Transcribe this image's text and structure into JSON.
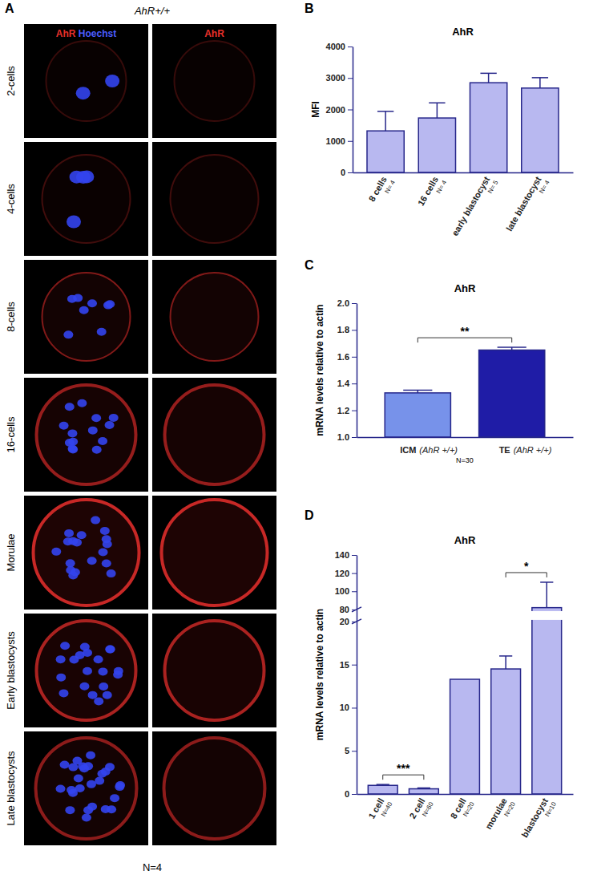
{
  "image_panel": {
    "label": "A",
    "header": "AhR+/+",
    "columns": [
      [
        "AhR",
        "Hoechst"
      ],
      [
        "AhR"
      ]
    ],
    "rows": [
      "2-cells",
      "4-cells",
      "8-cells",
      "16-cells",
      "Morulae",
      "Early blastocysts",
      "Late blastocysts"
    ],
    "footer": "N=4"
  },
  "chart_data": [
    {
      "type": "bar",
      "panel": "B",
      "title": "AhR",
      "ylabel": "MFI",
      "categories": [
        "8 cells",
        "16 cells",
        "early blastocyst",
        "late blastocyst"
      ],
      "category_notes": [
        "N= 4",
        "N= 4",
        "N= 5",
        "N= 4"
      ],
      "values": [
        1320,
        1730,
        2850,
        2680
      ],
      "errors": [
        620,
        480,
        300,
        330
      ],
      "color": "#b8b8f0",
      "ylim": [
        0,
        4000
      ],
      "yticks": [
        0,
        1000,
        2000,
        3000,
        4000
      ]
    },
    {
      "type": "bar",
      "panel": "C",
      "title": "AhR",
      "ylabel": "mRNA levels relative to actin",
      "categories": [
        "ICM",
        "TE"
      ],
      "category_notes": [
        "(AhR +/+)",
        "(AhR +/+)"
      ],
      "values": [
        1.33,
        1.65
      ],
      "errors": [
        0.02,
        0.02
      ],
      "colors": [
        "#7792ea",
        "#1f1ca6"
      ],
      "ylim": [
        1,
        2
      ],
      "yticks": [
        {
          "value": 1,
          "label": "1.0"
        },
        {
          "value": 1.2,
          "label": "1.2"
        },
        {
          "value": 1.4,
          "label": "1.4"
        },
        {
          "value": 1.6,
          "label": "1.6"
        },
        {
          "value": 1.8,
          "label": "1.8"
        },
        {
          "value": 2,
          "label": "2.0"
        }
      ],
      "annotations": [
        {
          "text": "**",
          "between": [
            0,
            1
          ]
        },
        {
          "text": "N=30"
        }
      ]
    },
    {
      "type": "bar",
      "panel": "D",
      "title": "AhR",
      "ylabel": "mRNA levels relative to actin",
      "categories": [
        "1 cell",
        "2 cell",
        "8 cell",
        "morulae",
        "blastocyst"
      ],
      "category_notes": [
        "N=40",
        "N=60",
        "N=20",
        "N=20",
        "N=10"
      ],
      "values": [
        1.0,
        0.6,
        13.3,
        14.5,
        82
      ],
      "errors": [
        0.1,
        0.1,
        null,
        1.5,
        28
      ],
      "color": "#b8b8f0",
      "ylim": [
        0,
        140
      ],
      "axis_break": [
        20,
        80
      ],
      "yticks": [
        0,
        5,
        10,
        15,
        20,
        80,
        100,
        120,
        140
      ],
      "annotations": [
        {
          "text": "***",
          "between": [
            0,
            1
          ]
        },
        {
          "text": "*",
          "between": [
            3,
            4
          ]
        }
      ]
    }
  ]
}
